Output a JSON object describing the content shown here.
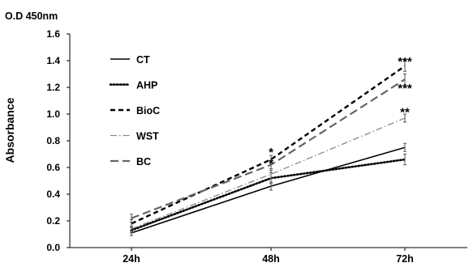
{
  "chart_data": {
    "type": "line",
    "categories": [
      "24h",
      "48h",
      "72h"
    ],
    "ylabel": "Absorbance",
    "unit_label": "O.D 450nm",
    "ylim": [
      0,
      1.6
    ],
    "yticks": [
      "0.0",
      "0.2",
      "0.4",
      "0.6",
      "0.8",
      "1.0",
      "1.2",
      "1.4",
      "1.6"
    ],
    "grid": false,
    "legend_position": "top-left",
    "series": [
      {
        "name": "CT",
        "values": [
          0.11,
          0.46,
          0.75
        ],
        "errors": [
          0.02,
          0.03,
          0.03
        ],
        "color": "#000000",
        "style": "solid"
      },
      {
        "name": "AHP",
        "values": [
          0.13,
          0.52,
          0.66
        ],
        "errors": [
          0.02,
          0.04,
          0.04
        ],
        "color": "#000000",
        "style": "dotted"
      },
      {
        "name": "BioC",
        "values": [
          0.18,
          0.66,
          1.36
        ],
        "errors": [
          0.03,
          0.03,
          0.04
        ],
        "color": "#000000",
        "style": "dashed"
      },
      {
        "name": "WST",
        "values": [
          0.14,
          0.55,
          0.97
        ],
        "errors": [
          0.02,
          0.03,
          0.03
        ],
        "color": "#888888",
        "style": "dashdot"
      },
      {
        "name": "BC",
        "values": [
          0.22,
          0.62,
          1.26
        ],
        "errors": [
          0.03,
          0.03,
          0.04
        ],
        "color": "#666666",
        "style": "longdash"
      }
    ],
    "annotations": [
      {
        "text": "*",
        "x": "48h",
        "y": 0.72
      },
      {
        "text": "*",
        "x": "48h",
        "y": 0.64
      },
      {
        "text": "***",
        "x": "72h",
        "y": 1.4
      },
      {
        "text": "***",
        "x": "72h",
        "y": 1.2
      },
      {
        "text": "**",
        "x": "72h",
        "y": 1.02
      }
    ]
  }
}
